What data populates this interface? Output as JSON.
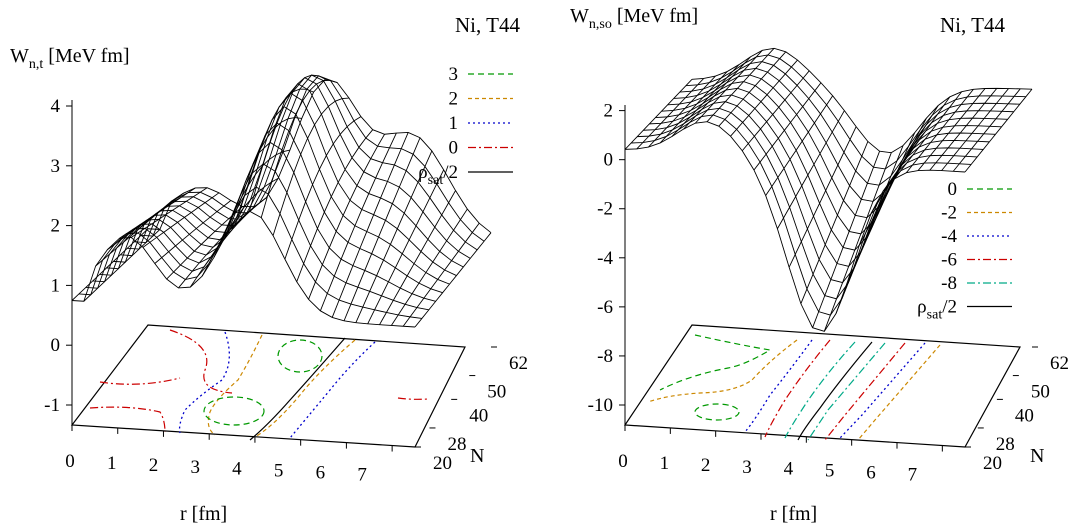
{
  "chart_data": [
    {
      "type": "surface",
      "title": "Ni, T44",
      "zlabel_main": "W",
      "zlabel_sub": "n,t",
      "zlabel_unit": "[MeV fm]",
      "xlabel": "r [fm]",
      "ylabel": "N",
      "x_ticks": [
        "0",
        "1",
        "2",
        "3",
        "4",
        "5",
        "6",
        "7"
      ],
      "y_ticks": [
        "20",
        "28",
        "40",
        "50",
        "62"
      ],
      "z_ticks": [
        "-1",
        "0",
        "1",
        "2",
        "3",
        "4"
      ],
      "x_range": [
        0,
        7.5
      ],
      "y_range": [
        20,
        62
      ],
      "z_range": [
        -1,
        4
      ],
      "legend_position": "top-right",
      "contours": [
        {
          "name": "3",
          "color": "#009900",
          "dash": "6,4"
        },
        {
          "name": "2",
          "color": "#cc8800",
          "dash": "4,3"
        },
        {
          "name": "1",
          "color": "#0000cc",
          "dash": "2,3"
        },
        {
          "name": "0",
          "color": "#cc0000",
          "dash": "8,3,2,3"
        },
        {
          "name": "ρsat/2",
          "color": "#000000",
          "dash": ""
        }
      ]
    },
    {
      "type": "surface",
      "title": "Ni, T44",
      "zlabel_main": "W",
      "zlabel_sub": "n,so",
      "zlabel_unit": "[MeV fm]",
      "xlabel": "r [fm]",
      "ylabel": "N",
      "x_ticks": [
        "0",
        "1",
        "2",
        "3",
        "4",
        "5",
        "6",
        "7"
      ],
      "y_ticks": [
        "20",
        "28",
        "40",
        "50",
        "62"
      ],
      "z_ticks": [
        "-10",
        "-8",
        "-6",
        "-4",
        "-2",
        "0",
        "2"
      ],
      "x_range": [
        0,
        7.5
      ],
      "y_range": [
        20,
        62
      ],
      "z_range": [
        -10,
        2
      ],
      "legend_position": "right",
      "contours": [
        {
          "name": "0",
          "color": "#009900",
          "dash": "6,4"
        },
        {
          "name": "-2",
          "color": "#cc8800",
          "dash": "4,3"
        },
        {
          "name": "-4",
          "color": "#0000cc",
          "dash": "2,3"
        },
        {
          "name": "-6",
          "color": "#cc0000",
          "dash": "8,3,2,3"
        },
        {
          "name": "-8",
          "color": "#00aa88",
          "dash": "8,3,2,3"
        },
        {
          "name": "ρsat/2",
          "color": "#000000",
          "dash": ""
        }
      ]
    }
  ],
  "legend_rho_main": "ρ",
  "legend_rho_sub": "sat",
  "legend_rho_tail": "/2"
}
